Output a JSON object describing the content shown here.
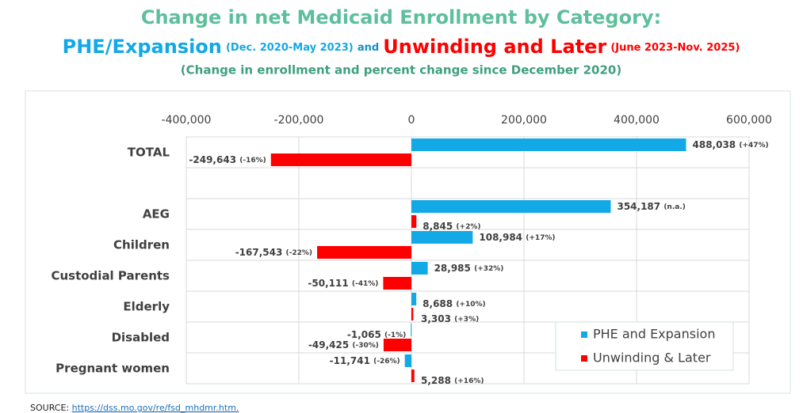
{
  "chart_data": {
    "type": "hbar",
    "title": "Change in net Medicaid Enrollment by Category:",
    "title2": [
      "PHE/Expansion",
      "(Dec. 2020-May 2023)",
      "and",
      "Unwinding and Later",
      "(June 2023-Nov. 2025)"
    ],
    "subtitle": "(Change in enrollment and percent change since December 2020)",
    "categories": [
      "TOTAL",
      null,
      "AEG",
      "Children",
      "Custodial Parents",
      "Elderly",
      "Disabled",
      "Pregnant women"
    ],
    "series": [
      {
        "name": "PHE and Expansion",
        "color": "#12a9e6",
        "values": [
          488038,
          null,
          354187,
          108984,
          28985,
          8688,
          -1065,
          -11741
        ],
        "value_labels": [
          "488,038",
          null,
          "354,187",
          "108,984",
          "28,985",
          "8,688",
          "-1,065",
          "-11,741"
        ],
        "pct_labels": [
          "(+47%)",
          null,
          "(n.a.)",
          "(+17%)",
          "(+32%)",
          "(+10%)",
          "(-1%)",
          "(-26%)"
        ]
      },
      {
        "name": "Unwinding & Later",
        "color": "#ff0000",
        "values": [
          -249643,
          null,
          8845,
          -167543,
          -50111,
          3303,
          -49425,
          5288
        ],
        "value_labels": [
          "-249,643",
          null,
          "8,845",
          "-167,543",
          "-50,111",
          "3,303",
          "-49,425",
          "5,288"
        ],
        "pct_labels": [
          "(-16%)",
          null,
          "(+2%)",
          "(-22%)",
          "(-41%)",
          "(+3%)",
          "(-30%)",
          "(+16%)"
        ]
      }
    ],
    "xlim": [
      -400000,
      600000
    ],
    "xticks": [
      {
        "value": -400000,
        "label": "-400,000"
      },
      {
        "value": -200000,
        "label": "-200,000"
      },
      0,
      {
        "value": 200000,
        "label": "200,000"
      },
      {
        "value": 400000,
        "label": "400,000"
      },
      {
        "value": 600000,
        "label": "600,000"
      }
    ],
    "grid": true,
    "legend": "lower right",
    "source_label": "SOURCE:",
    "source_url": "https://dss.mo.gov/re/fsd_mhdmr.htm."
  }
}
